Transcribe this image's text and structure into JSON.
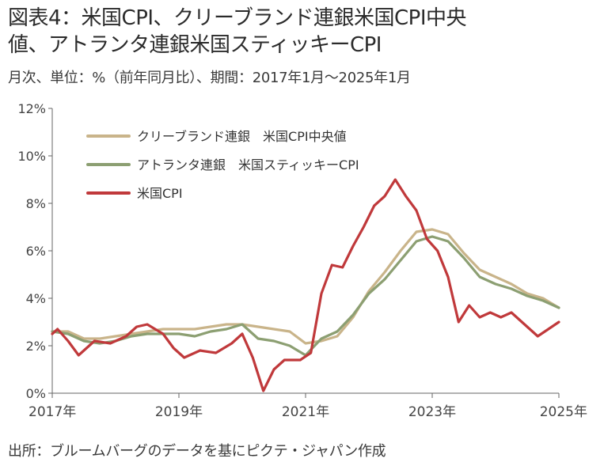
{
  "header": {
    "title_line1": "図表4：米国CPI、クリーブランド連銀米国CPI中央",
    "title_line2": "値、アトランタ連銀米国スティッキーCPI",
    "subtitle": "月次、単位：%（前年同月比）、期間：2017年1月～2025年1月"
  },
  "footer": {
    "source": "出所：ブルームバーグのデータを基にピクテ・ジャパン作成"
  },
  "chart_data": {
    "type": "line",
    "ylim": [
      0,
      12
    ],
    "yticks": [
      "0%",
      "2%",
      "4%",
      "6%",
      "8%",
      "10%",
      "12%"
    ],
    "xlim": [
      "2017-01",
      "2025-01"
    ],
    "xticks": [
      "2017年",
      "2019年",
      "2021年",
      "2023年",
      "2025年"
    ],
    "legend_position": "top-left",
    "grid": false,
    "series": [
      {
        "name": "クリーブランド連銀　米国CPI中央値",
        "color": "#c9b48a",
        "points": [
          [
            "2017-01",
            2.6
          ],
          [
            "2017-04",
            2.6
          ],
          [
            "2017-07",
            2.3
          ],
          [
            "2017-10",
            2.3
          ],
          [
            "2018-01",
            2.4
          ],
          [
            "2018-04",
            2.5
          ],
          [
            "2018-07",
            2.6
          ],
          [
            "2018-10",
            2.7
          ],
          [
            "2019-01",
            2.7
          ],
          [
            "2019-04",
            2.7
          ],
          [
            "2019-07",
            2.8
          ],
          [
            "2019-10",
            2.9
          ],
          [
            "2020-01",
            2.9
          ],
          [
            "2020-04",
            2.8
          ],
          [
            "2020-07",
            2.7
          ],
          [
            "2020-10",
            2.6
          ],
          [
            "2021-01",
            2.1
          ],
          [
            "2021-04",
            2.2
          ],
          [
            "2021-07",
            2.4
          ],
          [
            "2021-10",
            3.2
          ],
          [
            "2022-01",
            4.3
          ],
          [
            "2022-04",
            5.1
          ],
          [
            "2022-07",
            6.0
          ],
          [
            "2022-10",
            6.8
          ],
          [
            "2023-01",
            6.9
          ],
          [
            "2023-04",
            6.7
          ],
          [
            "2023-07",
            5.9
          ],
          [
            "2023-10",
            5.2
          ],
          [
            "2024-01",
            4.9
          ],
          [
            "2024-04",
            4.6
          ],
          [
            "2024-07",
            4.2
          ],
          [
            "2024-10",
            4.0
          ],
          [
            "2025-01",
            3.6
          ]
        ]
      },
      {
        "name": "アトランタ連銀　米国スティッキーCPI",
        "color": "#8c9f72",
        "points": [
          [
            "2017-01",
            2.6
          ],
          [
            "2017-04",
            2.5
          ],
          [
            "2017-07",
            2.2
          ],
          [
            "2017-10",
            2.1
          ],
          [
            "2018-01",
            2.2
          ],
          [
            "2018-04",
            2.4
          ],
          [
            "2018-07",
            2.5
          ],
          [
            "2018-10",
            2.5
          ],
          [
            "2019-01",
            2.5
          ],
          [
            "2019-04",
            2.4
          ],
          [
            "2019-07",
            2.6
          ],
          [
            "2019-10",
            2.7
          ],
          [
            "2020-01",
            2.9
          ],
          [
            "2020-04",
            2.3
          ],
          [
            "2020-07",
            2.2
          ],
          [
            "2020-10",
            2.0
          ],
          [
            "2021-01",
            1.6
          ],
          [
            "2021-04",
            2.3
          ],
          [
            "2021-07",
            2.6
          ],
          [
            "2021-10",
            3.3
          ],
          [
            "2022-01",
            4.2
          ],
          [
            "2022-04",
            4.8
          ],
          [
            "2022-07",
            5.6
          ],
          [
            "2022-10",
            6.4
          ],
          [
            "2023-01",
            6.6
          ],
          [
            "2023-04",
            6.4
          ],
          [
            "2023-07",
            5.7
          ],
          [
            "2023-10",
            4.9
          ],
          [
            "2024-01",
            4.6
          ],
          [
            "2024-04",
            4.4
          ],
          [
            "2024-07",
            4.1
          ],
          [
            "2024-10",
            3.9
          ],
          [
            "2025-01",
            3.6
          ]
        ]
      },
      {
        "name": "米国CPI",
        "color": "#c0393b",
        "points": [
          [
            "2017-01",
            2.5
          ],
          [
            "2017-02",
            2.7
          ],
          [
            "2017-04",
            2.2
          ],
          [
            "2017-06",
            1.6
          ],
          [
            "2017-09",
            2.2
          ],
          [
            "2017-12",
            2.1
          ],
          [
            "2018-03",
            2.4
          ],
          [
            "2018-05",
            2.8
          ],
          [
            "2018-07",
            2.9
          ],
          [
            "2018-10",
            2.5
          ],
          [
            "2018-12",
            1.9
          ],
          [
            "2019-02",
            1.5
          ],
          [
            "2019-05",
            1.8
          ],
          [
            "2019-08",
            1.7
          ],
          [
            "2019-11",
            2.1
          ],
          [
            "2020-01",
            2.5
          ],
          [
            "2020-03",
            1.5
          ],
          [
            "2020-05",
            0.1
          ],
          [
            "2020-07",
            1.0
          ],
          [
            "2020-09",
            1.4
          ],
          [
            "2020-12",
            1.4
          ],
          [
            "2021-02",
            1.7
          ],
          [
            "2021-04",
            4.2
          ],
          [
            "2021-06",
            5.4
          ],
          [
            "2021-08",
            5.3
          ],
          [
            "2021-10",
            6.2
          ],
          [
            "2021-12",
            7.0
          ],
          [
            "2022-02",
            7.9
          ],
          [
            "2022-04",
            8.3
          ],
          [
            "2022-06",
            9.0
          ],
          [
            "2022-08",
            8.3
          ],
          [
            "2022-10",
            7.7
          ],
          [
            "2022-12",
            6.5
          ],
          [
            "2023-02",
            6.0
          ],
          [
            "2023-04",
            4.9
          ],
          [
            "2023-06",
            3.0
          ],
          [
            "2023-08",
            3.7
          ],
          [
            "2023-10",
            3.2
          ],
          [
            "2023-12",
            3.4
          ],
          [
            "2024-02",
            3.2
          ],
          [
            "2024-04",
            3.4
          ],
          [
            "2024-06",
            3.0
          ],
          [
            "2024-09",
            2.4
          ],
          [
            "2024-11",
            2.7
          ],
          [
            "2025-01",
            3.0
          ]
        ]
      }
    ]
  }
}
